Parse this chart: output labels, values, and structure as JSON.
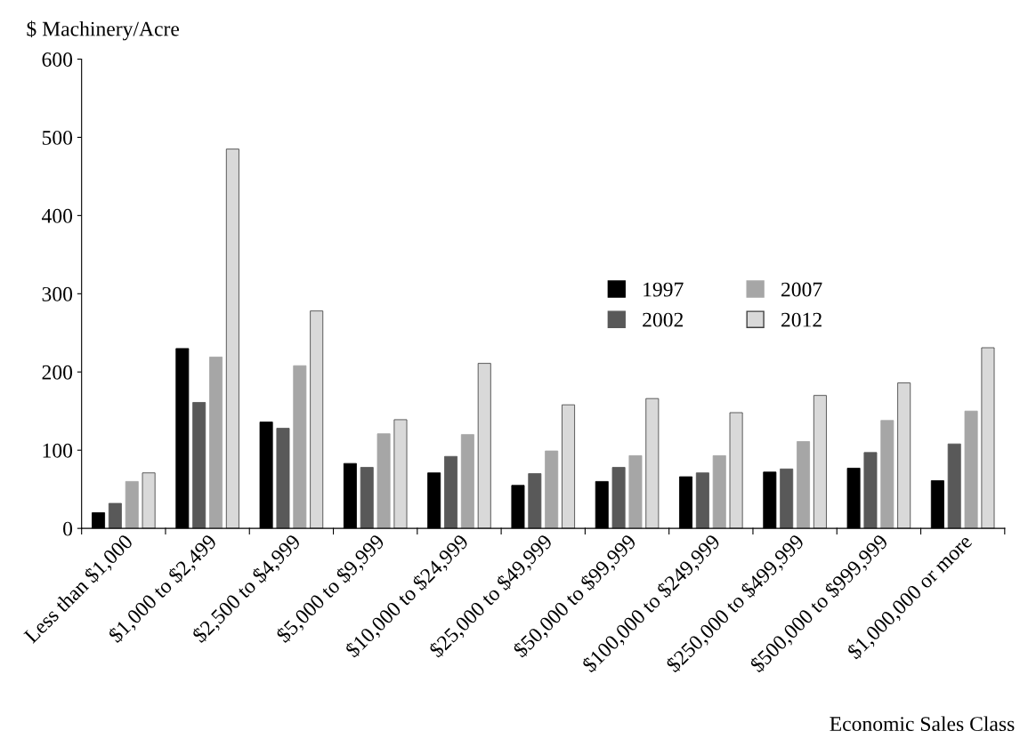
{
  "chart_data": {
    "type": "bar",
    "ylabel": "$ Machinery/Acre",
    "xlabel": "Economic Sales Class",
    "categories": [
      "Less than $1,000",
      "$1,000 to $2,499",
      "$2,500 to $4,999",
      "$5,000 to $9,999",
      "$10,000 to $24,999",
      "$25,000 to $49,999",
      "$50,000 to $99,999",
      "$100,000 to $249,999",
      "$250,000 to $499,999",
      "$500,000 to $999,999",
      "$1,000,000 or more"
    ],
    "series": [
      {
        "name": "1997",
        "color": "#000000",
        "values": [
          20,
          230,
          136,
          83,
          71,
          55,
          60,
          66,
          72,
          77,
          61
        ]
      },
      {
        "name": "2002",
        "color": "#595959",
        "values": [
          32,
          161,
          128,
          78,
          92,
          70,
          78,
          71,
          76,
          97,
          108
        ]
      },
      {
        "name": "2007",
        "color": "#a6a6a6",
        "values": [
          60,
          219,
          208,
          121,
          120,
          99,
          93,
          93,
          111,
          138,
          150
        ]
      },
      {
        "name": "2012",
        "color": "#d9d9d9",
        "values": [
          71,
          485,
          278,
          139,
          211,
          158,
          166,
          148,
          170,
          186,
          231
        ]
      }
    ],
    "ylim": [
      0,
      600
    ],
    "yticks": [
      0,
      100,
      200,
      300,
      400,
      500,
      600
    ],
    "grid": false,
    "legend": "right"
  }
}
